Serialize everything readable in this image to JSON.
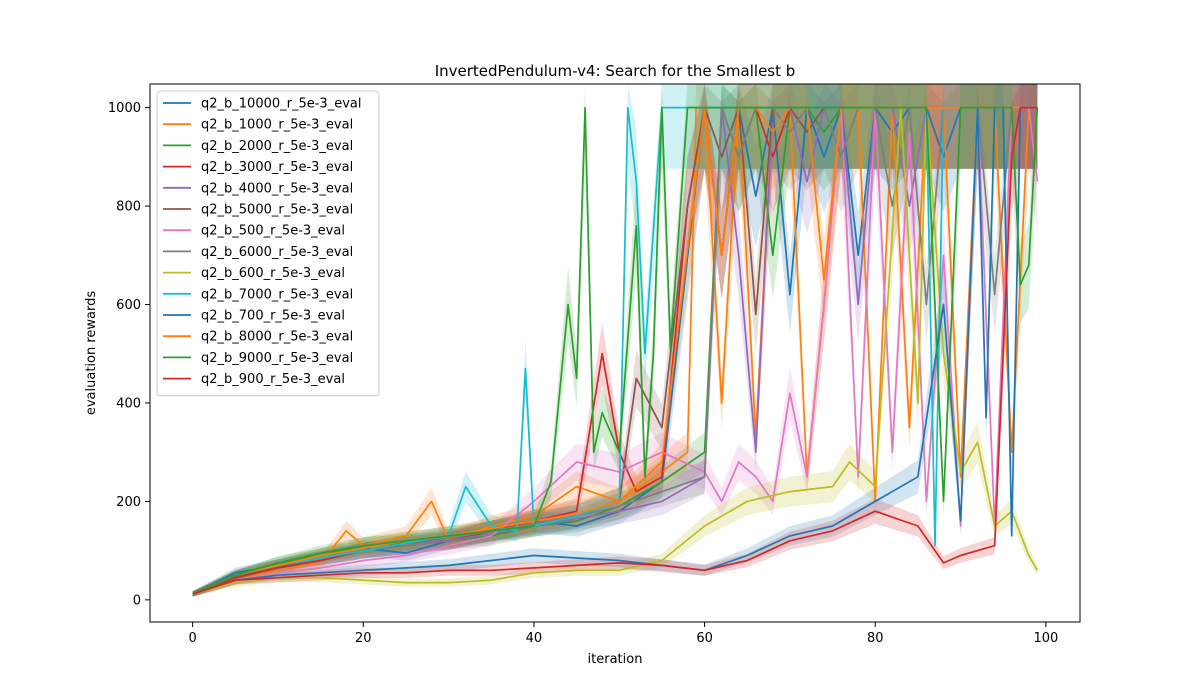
{
  "chart_data": {
    "type": "line",
    "title": "InvertedPendulum-v4: Search for the Smallest b",
    "xlabel": "iteration",
    "ylabel": "evaluation rewards",
    "xlim": [
      -5,
      104
    ],
    "ylim": [
      -45,
      1048
    ],
    "xticks": [
      0,
      20,
      40,
      60,
      80,
      100
    ],
    "yticks": [
      0,
      200,
      400,
      600,
      800,
      1000
    ],
    "grid": false,
    "legend": "upper-left",
    "series": [
      {
        "name": "q2_b_10000_r_5e-3_eval",
        "color": "#1f77b4",
        "x": [
          0,
          5,
          10,
          15,
          20,
          25,
          30,
          35,
          40,
          45,
          50,
          55,
          60,
          62,
          64,
          66,
          68,
          70,
          72,
          74,
          76,
          78,
          80,
          82,
          84,
          86,
          88,
          90,
          92,
          94,
          96,
          98,
          99
        ],
        "values": [
          12,
          55,
          70,
          90,
          105,
          95,
          120,
          140,
          160,
          150,
          180,
          240,
          1000,
          700,
          1000,
          820,
          1000,
          620,
          1000,
          900,
          1000,
          700,
          1000,
          950,
          1000,
          1000,
          900,
          1000,
          1000,
          1000,
          1000,
          1000,
          1000
        ]
      },
      {
        "name": "q2_b_1000_r_5e-3_eval",
        "color": "#ff7f0e",
        "x": [
          0,
          5,
          10,
          15,
          18,
          20,
          25,
          28,
          30,
          35,
          40,
          45,
          50,
          55,
          58,
          59,
          60,
          62,
          64,
          66,
          68,
          70,
          72,
          74,
          76,
          78,
          80,
          82,
          84,
          86,
          88,
          90,
          92,
          94,
          96,
          98,
          99
        ],
        "values": [
          12,
          40,
          60,
          75,
          140,
          110,
          130,
          200,
          120,
          150,
          170,
          230,
          200,
          260,
          300,
          1000,
          1000,
          400,
          1000,
          330,
          1000,
          1000,
          250,
          600,
          1000,
          1000,
          200,
          1000,
          350,
          1000,
          1000,
          250,
          1000,
          1000,
          300,
          1000,
          1000
        ]
      },
      {
        "name": "q2_b_2000_r_5e-3_eval",
        "color": "#2ca02c",
        "x": [
          0,
          5,
          10,
          15,
          20,
          25,
          30,
          35,
          40,
          45,
          50,
          55,
          60,
          62,
          64,
          66,
          68,
          70,
          72,
          74,
          76,
          78,
          80,
          82,
          84,
          86,
          88,
          90,
          92,
          94,
          96,
          98,
          99
        ],
        "values": [
          12,
          50,
          75,
          90,
          110,
          115,
          120,
          130,
          150,
          160,
          190,
          240,
          300,
          1000,
          900,
          1000,
          700,
          1000,
          1000,
          950,
          1000,
          1000,
          1000,
          1000,
          1000,
          1000,
          1000,
          1000,
          1000,
          1000,
          1000,
          1000,
          1000
        ]
      },
      {
        "name": "q2_b_3000_r_5e-3_eval",
        "color": "#d62728",
        "x": [
          0,
          5,
          10,
          15,
          20,
          25,
          30,
          35,
          40,
          45,
          48,
          50,
          52,
          55,
          58,
          60,
          62,
          64,
          66,
          68,
          70,
          72,
          74,
          76,
          78,
          80,
          82,
          84,
          86,
          88,
          90,
          92,
          94,
          96,
          98,
          99
        ],
        "values": [
          12,
          45,
          65,
          80,
          100,
          110,
          120,
          140,
          160,
          180,
          500,
          300,
          220,
          250,
          800,
          1000,
          700,
          1000,
          1000,
          900,
          1000,
          1000,
          1000,
          1000,
          1000,
          1000,
          1000,
          1000,
          1000,
          1000,
          1000,
          1000,
          1000,
          1000,
          1000,
          1000
        ]
      },
      {
        "name": "q2_b_4000_r_5e-3_eval",
        "color": "#9467bd",
        "x": [
          0,
          5,
          10,
          15,
          20,
          25,
          30,
          35,
          40,
          45,
          50,
          55,
          60,
          62,
          64,
          66,
          68,
          70,
          72,
          74,
          76,
          78,
          80,
          82,
          84,
          86,
          88,
          90,
          92,
          94,
          96,
          98,
          99
        ],
        "values": [
          12,
          50,
          70,
          85,
          100,
          110,
          120,
          135,
          150,
          165,
          180,
          200,
          250,
          1000,
          700,
          300,
          1000,
          1000,
          850,
          1000,
          1000,
          600,
          1000,
          1000,
          800,
          1000,
          1000,
          1000,
          1000,
          1000,
          1000,
          1000,
          1000
        ]
      },
      {
        "name": "q2_b_5000_r_5e-3_eval",
        "color": "#8c564b",
        "x": [
          0,
          5,
          10,
          15,
          20,
          25,
          30,
          35,
          40,
          45,
          50,
          52,
          55,
          58,
          60,
          62,
          64,
          66,
          68,
          70,
          72,
          74,
          76,
          78,
          80,
          82,
          84,
          86,
          88,
          90,
          92,
          94,
          96,
          98,
          99
        ],
        "values": [
          12,
          48,
          68,
          85,
          100,
          115,
          125,
          140,
          155,
          170,
          200,
          450,
          350,
          800,
          1000,
          900,
          1000,
          580,
          1000,
          1000,
          950,
          1000,
          1000,
          1000,
          1000,
          1000,
          1000,
          1000,
          1000,
          1000,
          1000,
          1000,
          1000,
          1000,
          1000
        ]
      },
      {
        "name": "q2_b_500_r_5e-3_eval",
        "color": "#e377c2",
        "x": [
          0,
          5,
          10,
          15,
          20,
          25,
          30,
          35,
          40,
          45,
          50,
          55,
          60,
          62,
          64,
          66,
          68,
          70,
          72,
          74,
          76,
          78,
          80,
          82,
          84,
          86,
          88,
          90,
          92,
          94,
          96,
          98,
          99
        ],
        "values": [
          12,
          40,
          55,
          65,
          80,
          90,
          110,
          130,
          200,
          280,
          260,
          300,
          260,
          200,
          280,
          250,
          200,
          420,
          250,
          600,
          1000,
          250,
          1000,
          300,
          950,
          200,
          700,
          150,
          1000,
          150,
          1000,
          1000,
          850
        ]
      },
      {
        "name": "q2_b_6000_r_5e-3_eval",
        "color": "#7f7f7f",
        "x": [
          0,
          5,
          10,
          15,
          20,
          25,
          30,
          35,
          40,
          45,
          50,
          55,
          60,
          62,
          64,
          66,
          68,
          70,
          72,
          74,
          76,
          78,
          80,
          82,
          84,
          86,
          88,
          90,
          92,
          94,
          96,
          98,
          99
        ],
        "values": [
          12,
          50,
          70,
          85,
          100,
          110,
          125,
          140,
          155,
          170,
          190,
          220,
          250,
          1000,
          900,
          1000,
          1000,
          950,
          1000,
          1000,
          900,
          1000,
          1000,
          800,
          1000,
          600,
          1000,
          1000,
          1000,
          620,
          1000,
          1000,
          1000
        ]
      },
      {
        "name": "q2_b_600_r_5e-3_eval",
        "color": "#bcbd22",
        "x": [
          0,
          5,
          10,
          15,
          20,
          25,
          30,
          35,
          40,
          45,
          50,
          55,
          60,
          65,
          70,
          75,
          77,
          80,
          83,
          85,
          86,
          88,
          90,
          92,
          94,
          96,
          98,
          99
        ],
        "values": [
          12,
          35,
          45,
          45,
          40,
          35,
          35,
          40,
          55,
          60,
          60,
          80,
          150,
          200,
          220,
          230,
          280,
          230,
          1000,
          400,
          1000,
          500,
          260,
          320,
          150,
          180,
          90,
          60
        ]
      },
      {
        "name": "q2_b_7000_r_5e-3_eval",
        "color": "#17becf",
        "x": [
          0,
          5,
          10,
          15,
          20,
          25,
          30,
          32,
          35,
          38,
          39,
          40,
          45,
          50,
          51,
          52,
          53,
          55,
          57,
          58,
          60,
          62,
          64,
          66,
          68,
          70,
          72,
          74,
          76,
          78,
          80,
          82,
          84,
          86,
          87,
          88,
          90,
          92,
          94,
          96,
          98,
          99
        ],
        "values": [
          12,
          50,
          70,
          85,
          100,
          115,
          130,
          230,
          150,
          140,
          470,
          150,
          170,
          200,
          1000,
          850,
          500,
          1000,
          1000,
          1000,
          1000,
          1000,
          1000,
          1000,
          1000,
          1000,
          1000,
          1000,
          1000,
          1000,
          1000,
          1000,
          1000,
          1000,
          110,
          1000,
          1000,
          1000,
          1000,
          1000,
          1000,
          1000
        ]
      },
      {
        "name": "q2_b_700_r_5e-3_eval",
        "color": "#1f77b4",
        "x": [
          0,
          5,
          10,
          15,
          20,
          25,
          30,
          35,
          40,
          45,
          50,
          55,
          60,
          65,
          70,
          75,
          80,
          85,
          88,
          90,
          92,
          93,
          94,
          95,
          96,
          97,
          98,
          99
        ],
        "values": [
          12,
          40,
          50,
          55,
          60,
          65,
          70,
          80,
          90,
          85,
          80,
          70,
          60,
          90,
          130,
          150,
          200,
          250,
          600,
          160,
          1000,
          370,
          1000,
          1000,
          130,
          1000,
          1000,
          1000
        ]
      },
      {
        "name": "q2_b_8000_r_5e-3_eval",
        "color": "#ff7f0e",
        "x": [
          0,
          5,
          10,
          15,
          20,
          25,
          30,
          35,
          40,
          45,
          50,
          55,
          60,
          62,
          64,
          66,
          68,
          70,
          72,
          74,
          76,
          78,
          80,
          82,
          84,
          86,
          88,
          90,
          92,
          94,
          96,
          98,
          99
        ],
        "values": [
          12,
          50,
          70,
          90,
          105,
          120,
          130,
          145,
          160,
          175,
          200,
          280,
          1000,
          700,
          1000,
          1000,
          950,
          1000,
          1000,
          650,
          1000,
          1000,
          1000,
          1000,
          1000,
          1000,
          1000,
          1000,
          1000,
          1000,
          1000,
          1000,
          1000
        ]
      },
      {
        "name": "q2_b_9000_r_5e-3_eval",
        "color": "#2ca02c",
        "x": [
          0,
          5,
          10,
          15,
          20,
          25,
          30,
          35,
          40,
          42,
          44,
          45,
          46,
          47,
          48,
          50,
          52,
          53,
          54,
          55,
          56,
          58,
          60,
          62,
          64,
          66,
          68,
          70,
          72,
          74,
          76,
          78,
          80,
          82,
          84,
          86,
          88,
          90,
          92,
          94,
          96,
          97,
          98,
          99
        ],
        "values": [
          12,
          50,
          75,
          95,
          110,
          120,
          130,
          140,
          150,
          240,
          600,
          450,
          1000,
          300,
          380,
          300,
          760,
          250,
          500,
          1000,
          510,
          1000,
          1000,
          1000,
          1000,
          1000,
          1000,
          1000,
          1000,
          1000,
          1000,
          1000,
          1000,
          1000,
          1000,
          1000,
          200,
          1000,
          1000,
          1000,
          1000,
          640,
          680,
          1000
        ]
      },
      {
        "name": "q2_b_900_r_5e-3_eval",
        "color": "#d62728",
        "x": [
          0,
          5,
          10,
          15,
          20,
          25,
          30,
          35,
          40,
          45,
          50,
          55,
          60,
          65,
          70,
          75,
          80,
          85,
          88,
          90,
          92,
          94,
          95,
          96,
          97,
          98,
          99
        ],
        "values": [
          12,
          40,
          45,
          50,
          55,
          55,
          60,
          60,
          65,
          70,
          75,
          70,
          60,
          80,
          120,
          140,
          180,
          150,
          75,
          90,
          100,
          110,
          500,
          900,
          1000,
          1000,
          1000
        ]
      }
    ]
  }
}
